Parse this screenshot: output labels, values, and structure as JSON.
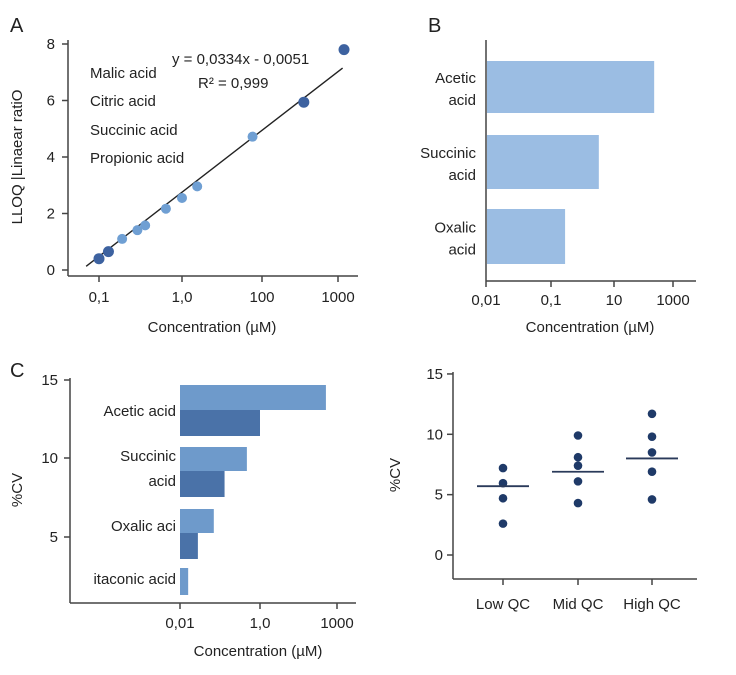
{
  "colors": {
    "light_point": "#6f9fd3",
    "dark_point": "#3d62a0",
    "bar_b": "#9bbde3",
    "bar_light": "#6e9acb",
    "bar_dark": "#4a72a8",
    "dot": "#1f3a68",
    "axis": "#444444"
  },
  "chart_data": [
    {
      "panel": "A",
      "type": "scatter",
      "xlabel": "Concentration (µM)",
      "ylabel": "LLOQ |Linaear ratiO",
      "x_ticks": [
        "0,1",
        "1,0",
        "100",
        "1000"
      ],
      "x_tick_values": [
        0.1,
        1,
        100,
        1000
      ],
      "y_ticks": [
        "0",
        "2",
        "4",
        "6",
        "8"
      ],
      "y_tick_values": [
        0,
        2,
        4,
        6,
        8
      ],
      "ylim": [
        0,
        8
      ],
      "legend": [
        "Malic acid",
        "Citric acid",
        "Succinic acid",
        "Propionic acid"
      ],
      "equation": "y = 0,0334x - 0,0051",
      "r2": "R² = 0,999",
      "points": [
        {
          "x": 0.1,
          "y": 0.4,
          "shade": "dark"
        },
        {
          "x": 0.13,
          "y": 0.65,
          "shade": "dark"
        },
        {
          "x": 0.19,
          "y": 1.1,
          "shade": "light"
        },
        {
          "x": 0.29,
          "y": 1.41,
          "shade": "light"
        },
        {
          "x": 0.36,
          "y": 1.58,
          "shade": "light"
        },
        {
          "x": 0.64,
          "y": 2.17,
          "shade": "light"
        },
        {
          "x": 1.0,
          "y": 2.55,
          "shade": "light"
        },
        {
          "x": 2.4,
          "y": 2.96,
          "shade": "light"
        },
        {
          "x": 58,
          "y": 4.72,
          "shade": "light"
        },
        {
          "x": 355,
          "y": 5.94,
          "shade": "dark"
        },
        {
          "x": 1200,
          "y": 7.8,
          "shade": "dark"
        }
      ],
      "fit_line": [
        {
          "x": 0.07,
          "y": 0.13
        },
        {
          "x": 1150,
          "y": 7.15
        }
      ]
    },
    {
      "panel": "B",
      "type": "bar",
      "orientation": "horizontal",
      "xlabel": "Concentration (µM)",
      "x_ticks": [
        "0,01",
        "0,1",
        "10",
        "1000"
      ],
      "x_tick_values": [
        0.01,
        0.1,
        10,
        1000
      ],
      "categories": [
        [
          "Acetic",
          "acid"
        ],
        [
          "Succinic",
          "acid"
        ],
        [
          "Oxalic",
          "acid"
        ]
      ],
      "values": [
        230,
        3.3,
        0.28
      ]
    },
    {
      "panel": "C",
      "type": "bar",
      "orientation": "horizontal",
      "xlabel": "Concentration (µM)",
      "ylabel": "%CV",
      "x_ticks": [
        "0,01",
        "1,0",
        "1000"
      ],
      "x_tick_values": [
        0.01,
        1,
        1000
      ],
      "y_ticks": [
        "15",
        "10",
        "5"
      ],
      "categories": [
        [
          "Acetic acid"
        ],
        [
          "Succinic",
          "acid"
        ],
        [
          "Oxalic aci"
        ],
        [
          "itaconic acid"
        ]
      ],
      "series": [
        {
          "shade": "light",
          "values": [
            370,
            0.47,
            0.07,
            0.016
          ]
        },
        {
          "shade": "dark",
          "values": [
            1.0,
            0.13,
            0.028,
            null
          ]
        }
      ]
    },
    {
      "panel": "",
      "type": "scatter",
      "ylabel": "%CV",
      "y_ticks": [
        "15",
        "10",
        "5",
        "0"
      ],
      "y_tick_values": [
        15,
        10,
        5,
        0
      ],
      "ylim": [
        -2,
        15
      ],
      "categories": [
        "Low QC",
        "Mid QC",
        "High QC"
      ],
      "points": [
        [
          7.2,
          5.95,
          4.7,
          2.6
        ],
        [
          9.9,
          8.1,
          7.4,
          6.1,
          4.3
        ],
        [
          11.7,
          9.8,
          8.5,
          6.9,
          4.6
        ]
      ],
      "medians": [
        5.7,
        6.9,
        8.0
      ]
    }
  ]
}
